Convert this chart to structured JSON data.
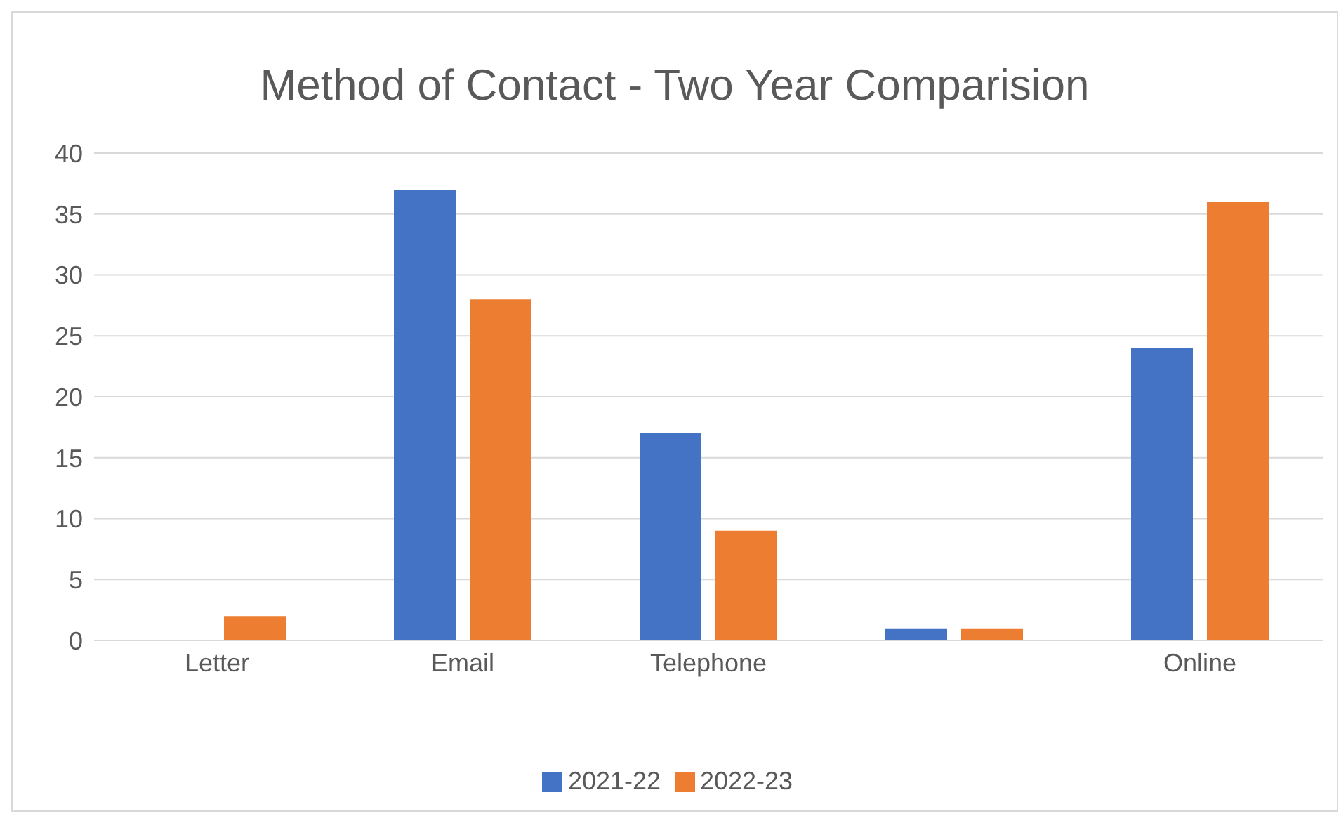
{
  "chart_data": {
    "type": "bar",
    "title": "Method of Contact - Two Year Comparision",
    "categories": [
      "Letter",
      "Email",
      "Telephone",
      null,
      "Online"
    ],
    "series": [
      {
        "name": "2021-22",
        "color": "#4472c4",
        "values": [
          0,
          37,
          17,
          1,
          24
        ]
      },
      {
        "name": "2022-23",
        "color": "#ed7d31",
        "values": [
          2,
          28,
          9,
          1,
          36
        ]
      }
    ],
    "ylim": [
      0,
      40
    ],
    "yticks": [
      0,
      5,
      10,
      15,
      20,
      25,
      30,
      35,
      40
    ],
    "grid": "y",
    "legend": "bottom"
  }
}
